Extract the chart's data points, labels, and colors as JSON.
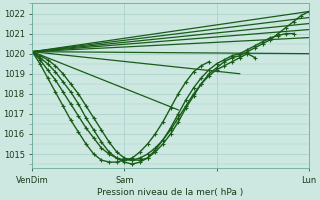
{
  "title": "Pression niveau de la mer( hPa )",
  "ylabel_ticks": [
    1015,
    1016,
    1017,
    1018,
    1019,
    1020,
    1021,
    1022
  ],
  "ylim": [
    1014.3,
    1022.5
  ],
  "xlim": [
    0,
    72
  ],
  "xtick_positions": [
    0,
    24,
    48,
    72
  ],
  "xtick_labels": [
    "VenDim",
    "Sam",
    "",
    "Lun"
  ],
  "bg_color": "#cce8e0",
  "grid_color": "#a8cfc8",
  "line_color": "#1a5c1a",
  "series": [
    {
      "x": [
        0,
        72
      ],
      "y": [
        1020.1,
        1022.1
      ],
      "markers": false,
      "lw": 0.9
    },
    {
      "x": [
        0,
        72
      ],
      "y": [
        1020.1,
        1021.8
      ],
      "markers": false,
      "lw": 0.9
    },
    {
      "x": [
        0,
        72
      ],
      "y": [
        1020.1,
        1021.5
      ],
      "markers": false,
      "lw": 0.9
    },
    {
      "x": [
        0,
        72
      ],
      "y": [
        1020.1,
        1021.2
      ],
      "markers": false,
      "lw": 0.9
    },
    {
      "x": [
        0,
        72
      ],
      "y": [
        1020.1,
        1020.8
      ],
      "markers": false,
      "lw": 0.9
    },
    {
      "x": [
        0,
        72
      ],
      "y": [
        1020.1,
        1020.0
      ],
      "markers": false,
      "lw": 0.9
    },
    {
      "x": [
        0,
        54
      ],
      "y": [
        1020.1,
        1019.0
      ],
      "markers": false,
      "lw": 0.9
    },
    {
      "x": [
        0,
        38
      ],
      "y": [
        1020.1,
        1017.2
      ],
      "markers": false,
      "lw": 0.9
    }
  ],
  "curved_series": [
    {
      "x": [
        0,
        2,
        4,
        6,
        8,
        10,
        12,
        14,
        16,
        18,
        20,
        22,
        24,
        26,
        28,
        30,
        32,
        34,
        36,
        38,
        40,
        42,
        44,
        46,
        48,
        50,
        52,
        54,
        56,
        58,
        60,
        62,
        64,
        66,
        68,
        70,
        72
      ],
      "y": [
        1020.1,
        1019.9,
        1019.7,
        1019.4,
        1019.0,
        1018.5,
        1018.0,
        1017.4,
        1016.8,
        1016.2,
        1015.6,
        1015.1,
        1014.8,
        1014.7,
        1014.7,
        1014.8,
        1015.1,
        1015.5,
        1016.0,
        1016.6,
        1017.3,
        1017.9,
        1018.5,
        1019.0,
        1019.3,
        1019.6,
        1019.8,
        1019.9,
        1020.1,
        1020.3,
        1020.5,
        1020.7,
        1021.0,
        1021.3,
        1021.6,
        1021.9,
        1022.1
      ],
      "lw": 1.0
    },
    {
      "x": [
        0,
        2,
        4,
        6,
        8,
        10,
        12,
        14,
        16,
        18,
        20,
        22,
        24,
        26,
        28,
        30,
        32,
        34,
        36,
        38,
        40,
        42,
        44,
        46,
        48,
        50,
        52,
        54,
        56,
        58,
        60,
        62,
        64,
        66,
        68
      ],
      "y": [
        1020.1,
        1019.8,
        1019.5,
        1019.1,
        1018.6,
        1018.1,
        1017.5,
        1016.8,
        1016.2,
        1015.6,
        1015.1,
        1014.8,
        1014.6,
        1014.5,
        1014.6,
        1014.8,
        1015.2,
        1015.7,
        1016.3,
        1017.0,
        1017.7,
        1018.3,
        1018.8,
        1019.2,
        1019.5,
        1019.7,
        1019.9,
        1020.0,
        1020.2,
        1020.4,
        1020.6,
        1020.8,
        1020.9,
        1021.0,
        1021.0
      ],
      "lw": 1.0
    },
    {
      "x": [
        0,
        2,
        4,
        6,
        8,
        10,
        12,
        14,
        16,
        18,
        20,
        22,
        24,
        26,
        28,
        30,
        32,
        34,
        36,
        38,
        40,
        42,
        44,
        46,
        48,
        50,
        52,
        54,
        56,
        58
      ],
      "y": [
        1020.1,
        1019.7,
        1019.2,
        1018.7,
        1018.1,
        1017.5,
        1016.9,
        1016.3,
        1015.8,
        1015.3,
        1015.0,
        1014.8,
        1014.7,
        1014.7,
        1014.8,
        1015.0,
        1015.3,
        1015.7,
        1016.2,
        1016.8,
        1017.4,
        1018.0,
        1018.5,
        1018.9,
        1019.2,
        1019.4,
        1019.6,
        1019.8,
        1020.0,
        1019.8
      ],
      "lw": 1.0
    },
    {
      "x": [
        0,
        2,
        4,
        6,
        8,
        10,
        12,
        14,
        16,
        18,
        20,
        22,
        24,
        26,
        28,
        30,
        32,
        34,
        36,
        38,
        40,
        42,
        44,
        46
      ],
      "y": [
        1020.1,
        1019.5,
        1018.8,
        1018.1,
        1017.4,
        1016.7,
        1016.1,
        1015.5,
        1015.0,
        1014.7,
        1014.6,
        1014.6,
        1014.7,
        1014.8,
        1015.1,
        1015.5,
        1016.0,
        1016.6,
        1017.3,
        1018.0,
        1018.6,
        1019.1,
        1019.4,
        1019.6
      ],
      "lw": 1.0
    }
  ]
}
